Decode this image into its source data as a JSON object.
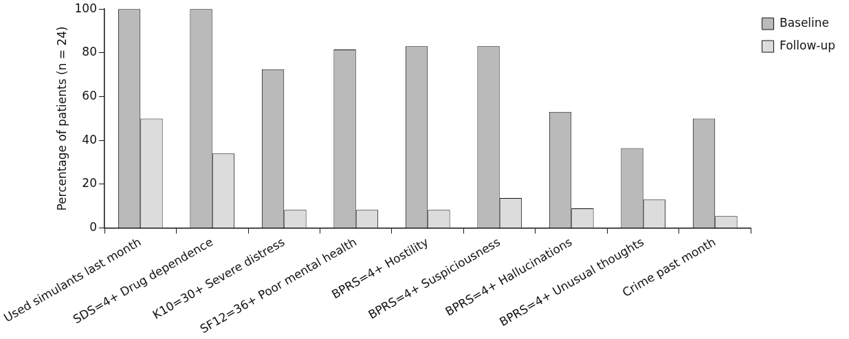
{
  "chart_data": {
    "type": "bar",
    "ylabel": "Percentage of patients (n = 24)",
    "categories": [
      "Used simulants last month",
      "SDS=4+ Drug dependence",
      "K10=30+ Severe distress",
      "SF12=36+ Poor mental health",
      "BPRS=4+ Hostility",
      "BPRS=4+ Suspiciousness",
      "BPRS=4+ Hallucinations",
      "BPRS=4+ Unusual thoughts",
      "Crime past month"
    ],
    "series": [
      {
        "name": "Baseline",
        "color": "#bababa",
        "values": [
          100,
          100,
          72.5,
          81.5,
          83,
          83,
          53,
          36.5,
          50
        ]
      },
      {
        "name": "Follow-up",
        "color": "#dcdcdc",
        "values": [
          50,
          34,
          8.3,
          8.3,
          8.3,
          13.7,
          9,
          13,
          5.5
        ]
      }
    ],
    "ylim": [
      0,
      100
    ],
    "yticks": [
      0,
      20,
      40,
      60,
      80,
      100
    ],
    "grid": false,
    "legend": "top right"
  }
}
